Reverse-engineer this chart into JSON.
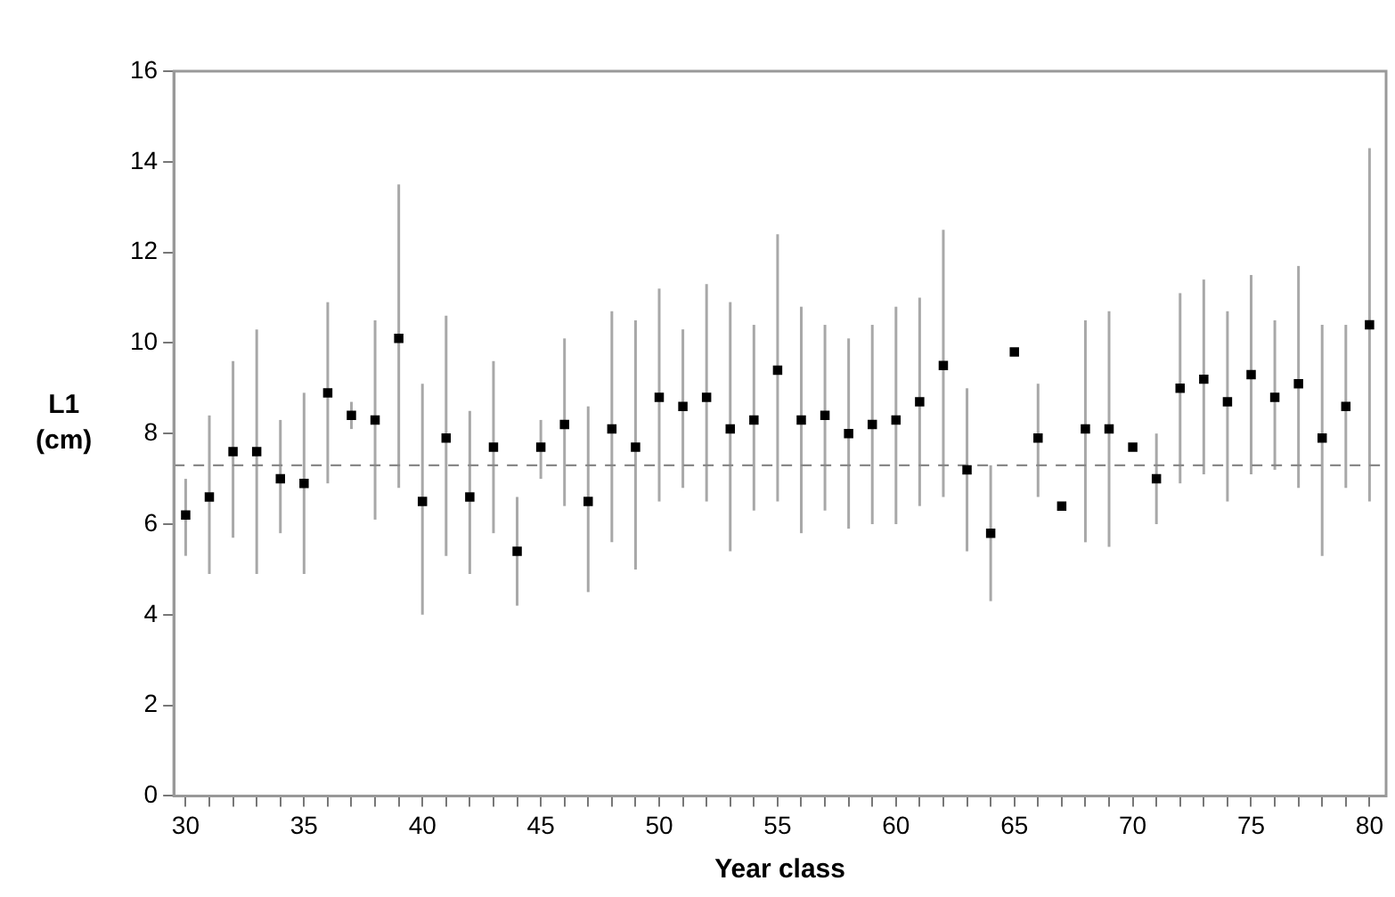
{
  "chart_data": {
    "type": "scatter",
    "xlabel": "Year class",
    "ylabel": "L1\n(cm)",
    "x": [
      30,
      31,
      32,
      33,
      34,
      35,
      36,
      37,
      38,
      39,
      40,
      41,
      42,
      43,
      44,
      45,
      46,
      47,
      48,
      49,
      50,
      51,
      52,
      53,
      54,
      55,
      56,
      57,
      58,
      59,
      60,
      61,
      62,
      63,
      64,
      65,
      66,
      67,
      68,
      69,
      70,
      71,
      72,
      73,
      74,
      75,
      76,
      77,
      78,
      79,
      80
    ],
    "series": [
      {
        "color": "#000000",
        "values": [
          6.2,
          6.6,
          7.6,
          7.6,
          7.0,
          6.9,
          8.9,
          8.4,
          8.3,
          10.1,
          6.5,
          7.9,
          6.6,
          7.7,
          5.4,
          7.7,
          8.2,
          6.5,
          8.1,
          7.7,
          8.8,
          8.6,
          8.8,
          8.1,
          8.3,
          9.4,
          8.3,
          8.4,
          8.0,
          8.2,
          8.3,
          8.7,
          9.5,
          7.2,
          5.8,
          9.8,
          7.9,
          6.4,
          8.1,
          8.1,
          7.7,
          7.0,
          9.0,
          9.2,
          8.7,
          9.3,
          8.8,
          9.1,
          7.9,
          8.6,
          10.4
        ],
        "errors": [
          [
            5.3,
            7.0
          ],
          [
            4.9,
            8.4
          ],
          [
            5.7,
            9.6
          ],
          [
            4.9,
            10.3
          ],
          [
            5.8,
            8.3
          ],
          [
            4.9,
            8.9
          ],
          [
            6.9,
            10.9
          ],
          [
            8.1,
            8.7
          ],
          [
            6.1,
            10.5
          ],
          [
            6.8,
            13.5
          ],
          [
            4.0,
            9.1
          ],
          [
            5.3,
            10.6
          ],
          [
            4.9,
            8.5
          ],
          [
            5.8,
            9.6
          ],
          [
            4.2,
            6.6
          ],
          [
            7.0,
            8.3
          ],
          [
            6.4,
            10.1
          ],
          [
            4.5,
            8.6
          ],
          [
            5.6,
            10.7
          ],
          [
            5.0,
            10.5
          ],
          [
            6.5,
            11.2
          ],
          [
            6.8,
            10.3
          ],
          [
            6.5,
            11.3
          ],
          [
            5.4,
            10.9
          ],
          [
            6.3,
            10.4
          ],
          [
            6.5,
            12.4
          ],
          [
            5.8,
            10.8
          ],
          [
            6.3,
            10.4
          ],
          [
            5.9,
            10.1
          ],
          [
            6.0,
            10.4
          ],
          [
            6.0,
            10.8
          ],
          [
            6.4,
            11.0
          ],
          [
            6.6,
            12.5
          ],
          [
            5.4,
            9.0
          ],
          [
            4.3,
            7.3
          ],
          null,
          [
            6.6,
            9.1
          ],
          null,
          [
            5.6,
            10.5
          ],
          [
            5.5,
            10.7
          ],
          null,
          [
            6.0,
            8.0
          ],
          [
            6.9,
            11.1
          ],
          [
            7.1,
            11.4
          ],
          [
            6.5,
            10.7
          ],
          [
            7.1,
            11.5
          ],
          [
            7.2,
            10.5
          ],
          [
            6.8,
            11.7
          ],
          [
            5.3,
            10.4
          ],
          [
            6.8,
            10.4
          ],
          [
            6.5,
            14.3
          ]
        ]
      }
    ],
    "xlim": [
      29.5,
      80.7
    ],
    "ylim": [
      0,
      16
    ],
    "xticks": [
      30,
      {
        "value": 31,
        "label": null
      },
      {
        "value": 32,
        "label": null
      },
      {
        "value": 33,
        "label": null
      },
      {
        "value": 34,
        "label": null
      },
      35,
      {
        "value": 36,
        "label": null
      },
      {
        "value": 37,
        "label": null
      },
      {
        "value": 38,
        "label": null
      },
      {
        "value": 39,
        "label": null
      },
      40,
      {
        "value": 41,
        "label": null
      },
      {
        "value": 42,
        "label": null
      },
      {
        "value": 43,
        "label": null
      },
      {
        "value": 44,
        "label": null
      },
      45,
      {
        "value": 46,
        "label": null
      },
      {
        "value": 47,
        "label": null
      },
      {
        "value": 48,
        "label": null
      },
      {
        "value": 49,
        "label": null
      },
      50,
      {
        "value": 51,
        "label": null
      },
      {
        "value": 52,
        "label": null
      },
      {
        "value": 53,
        "label": null
      },
      {
        "value": 54,
        "label": null
      },
      55,
      {
        "value": 56,
        "label": null
      },
      {
        "value": 57,
        "label": null
      },
      {
        "value": 58,
        "label": null
      },
      {
        "value": 59,
        "label": null
      },
      60,
      {
        "value": 61,
        "label": null
      },
      {
        "value": 62,
        "label": null
      },
      {
        "value": 63,
        "label": null
      },
      {
        "value": 64,
        "label": null
      },
      65,
      {
        "value": 66,
        "label": null
      },
      {
        "value": 67,
        "label": null
      },
      {
        "value": 68,
        "label": null
      },
      {
        "value": 69,
        "label": null
      },
      70,
      {
        "value": 71,
        "label": null
      },
      {
        "value": 72,
        "label": null
      },
      {
        "value": 73,
        "label": null
      },
      {
        "value": 74,
        "label": null
      },
      75,
      {
        "value": 76,
        "label": null
      },
      {
        "value": 77,
        "label": null
      },
      {
        "value": 78,
        "label": null
      },
      {
        "value": 79,
        "label": null
      },
      80
    ],
    "yticks": [
      0,
      2,
      4,
      6,
      8,
      10,
      12,
      14,
      16
    ],
    "ref_lines": [
      {
        "axis": "y",
        "value": 7.3,
        "color": "#888888",
        "line_style": "dashed"
      }
    ],
    "grid": false,
    "legend": false,
    "marker": "square"
  }
}
